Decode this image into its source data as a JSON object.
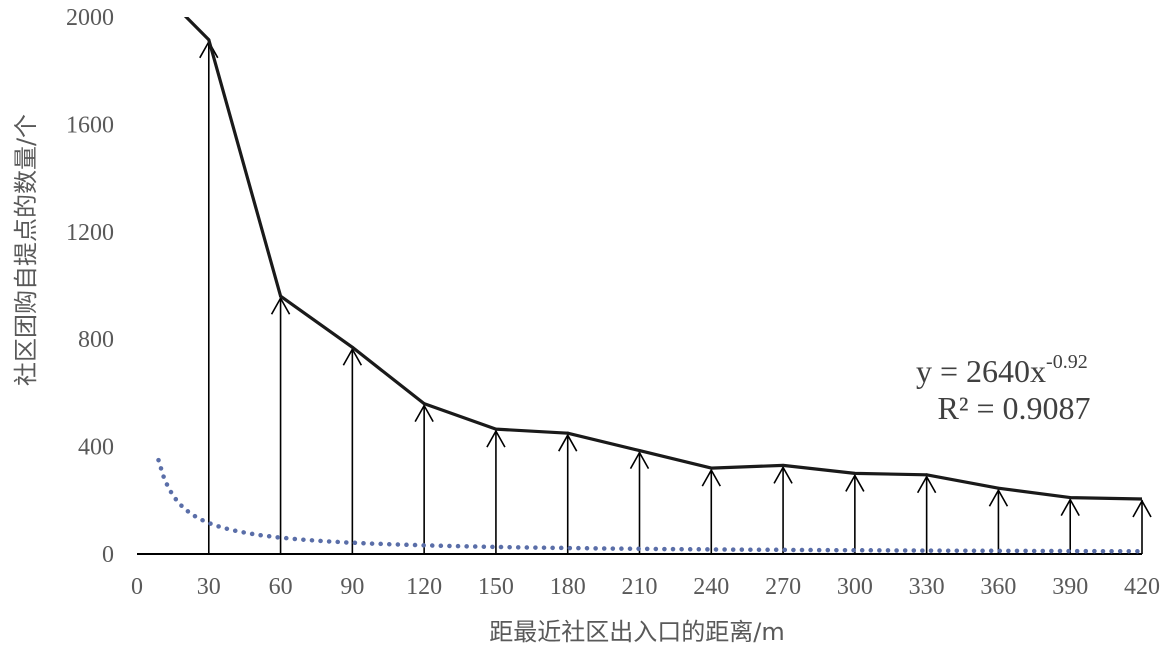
{
  "chart_data": {
    "type": "line",
    "xlabel": "距最近社区出入口的距离/m",
    "ylabel": "社区团购自提点的数量/个",
    "xlim": [
      0,
      420
    ],
    "ylim": [
      0,
      2000
    ],
    "x_ticks": [
      0,
      30,
      60,
      90,
      120,
      150,
      180,
      210,
      240,
      270,
      300,
      330,
      360,
      390,
      420
    ],
    "y_ticks": [
      0,
      400,
      800,
      1200,
      1600,
      2000
    ],
    "grid": false,
    "legend": "none",
    "series": [
      {
        "style": "solid-black",
        "x": [
          20,
          30,
          60,
          90,
          120,
          150,
          180,
          210,
          240,
          270,
          300,
          330,
          360,
          390,
          420
        ],
        "y": [
          2005,
          1915,
          960,
          770,
          560,
          465,
          450,
          385,
          320,
          330,
          300,
          295,
          245,
          210,
          205
        ]
      },
      {
        "style": "dotted-blue",
        "fit": {
          "type": "power",
          "a": 2640,
          "b": -0.92
        }
      }
    ],
    "annotations": {
      "equation": {
        "base": "y = 2640x",
        "exponent": "-0.92"
      },
      "r_squared": "R² = 0.9087"
    },
    "colors": {
      "data_line": "#1a1a1a",
      "trend_line": "#5a6ea8",
      "text": "#595959"
    }
  }
}
